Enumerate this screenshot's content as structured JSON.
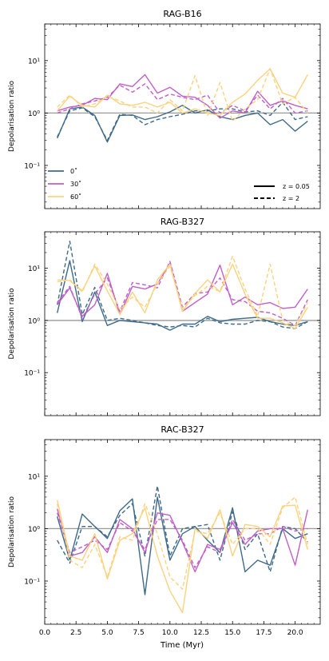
{
  "figure": {
    "xlabel": "Time (Myr)",
    "ylabel": "Depolarisation ratio",
    "x_ticks": [
      0.0,
      2.5,
      5.0,
      7.5,
      10.0,
      12.5,
      15.0,
      17.5,
      20.0
    ],
    "x_tick_labels": [
      "0.0",
      "2.5",
      "5.0",
      "7.5",
      "10.0",
      "12.5",
      "15.0",
      "17.5",
      "20.0"
    ],
    "xlim": [
      0,
      22
    ],
    "ylim": [
      0.015,
      50
    ],
    "y_scale": "log",
    "y_tick_labels": [
      "10⁻¹",
      "10⁰",
      "10¹"
    ],
    "reference_line": 1,
    "colors": {
      "0deg": "#3e6a89",
      "30deg": "#c05fc8",
      "60deg": "#fbd27e",
      "ref": "#999999"
    }
  },
  "legend_angles": [
    {
      "label": "0˚",
      "color": "#3e6a89"
    },
    {
      "label": "30˚",
      "color": "#c05fc8"
    },
    {
      "label": "60˚",
      "color": "#fbd27e"
    }
  ],
  "legend_z": [
    {
      "label": "z = 0.05",
      "style": "solid"
    },
    {
      "label": "z = 2",
      "style": "dashed"
    }
  ],
  "chart_data": [
    {
      "type": "line",
      "title": "RAG-B16",
      "x": [
        1,
        2,
        3,
        4,
        5,
        6,
        7,
        8,
        9,
        10,
        11,
        12,
        13,
        14,
        15,
        16,
        17,
        18,
        19,
        20,
        21
      ],
      "series": [
        {
          "name": "0˚, z = 0.05",
          "angle": "0deg",
          "style": "solid",
          "values": [
            0.33,
            1.2,
            1.3,
            0.9,
            0.28,
            0.9,
            0.92,
            0.75,
            0.85,
            1.05,
            1.4,
            1.0,
            1.15,
            0.85,
            0.75,
            0.9,
            1.0,
            0.6,
            0.75,
            0.45,
            0.7
          ]
        },
        {
          "name": "0˚, z = 2",
          "angle": "0deg",
          "style": "dashed",
          "values": [
            0.35,
            1.1,
            1.25,
            0.85,
            0.3,
            0.95,
            0.9,
            0.6,
            0.75,
            0.85,
            0.95,
            1.1,
            1.1,
            1.2,
            1.2,
            1.05,
            1.1,
            0.9,
            1.6,
            0.75,
            0.85
          ]
        },
        {
          "name": "30˚, z = 0.05",
          "angle": "30deg",
          "style": "solid",
          "values": [
            1.1,
            1.3,
            1.4,
            1.9,
            1.8,
            3.6,
            3.2,
            5.4,
            2.4,
            3.1,
            2.1,
            2.0,
            1.4,
            0.8,
            1.1,
            1.0,
            2.6,
            1.4,
            1.7,
            1.4,
            1.2
          ]
        },
        {
          "name": "30˚, z = 2",
          "angle": "30deg",
          "style": "dashed",
          "values": [
            1.0,
            1.2,
            1.5,
            1.7,
            2.0,
            3.4,
            2.5,
            3.6,
            1.8,
            2.3,
            2.0,
            1.8,
            2.2,
            1.0,
            1.4,
            1.1,
            2.2,
            1.2,
            1.9,
            1.0,
            1.1
          ]
        },
        {
          "name": "60˚, z = 0.05",
          "angle": "60deg",
          "style": "solid",
          "values": [
            1.1,
            2.1,
            1.4,
            1.3,
            2.2,
            1.5,
            1.4,
            1.6,
            1.3,
            1.6,
            1.0,
            1.2,
            1.0,
            0.9,
            1.6,
            2.3,
            4.2,
            7.0,
            2.4,
            2.0,
            5.4
          ]
        },
        {
          "name": "60˚, z = 2",
          "angle": "60deg",
          "style": "dashed",
          "values": [
            1.3,
            2.2,
            1.3,
            1.5,
            2.1,
            1.7,
            1.3,
            1.3,
            1.0,
            1.8,
            1.1,
            5.2,
            0.9,
            3.8,
            0.7,
            1.2,
            1.8,
            7.0,
            1.5,
            2.0,
            1.0
          ]
        }
      ]
    },
    {
      "type": "line",
      "title": "RAG-B327",
      "x": [
        1,
        2,
        3,
        4,
        5,
        6,
        7,
        8,
        9,
        10,
        11,
        12,
        13,
        14,
        15,
        16,
        17,
        18,
        19,
        20,
        21
      ],
      "series": [
        {
          "name": "0˚, z = 0.05",
          "angle": "0deg",
          "style": "solid",
          "values": [
            1.4,
            14.0,
            0.95,
            3.5,
            0.8,
            1.0,
            0.95,
            0.9,
            0.85,
            0.65,
            0.85,
            0.85,
            1.2,
            0.95,
            1.05,
            1.1,
            1.15,
            0.95,
            0.85,
            0.8,
            0.95
          ]
        },
        {
          "name": "0˚, z = 2",
          "angle": "0deg",
          "style": "dashed",
          "values": [
            2.0,
            33.0,
            1.3,
            4.3,
            1.0,
            1.1,
            1.0,
            0.9,
            0.8,
            0.75,
            0.8,
            0.75,
            1.1,
            0.9,
            0.85,
            0.85,
            1.0,
            0.95,
            0.75,
            0.7,
            0.95
          ]
        },
        {
          "name": "30˚, z = 0.05",
          "angle": "30deg",
          "style": "solid",
          "values": [
            2.0,
            4.2,
            1.2,
            2.0,
            8.0,
            1.3,
            4.5,
            4.0,
            5.0,
            12.5,
            1.5,
            2.2,
            3.2,
            11.5,
            2.0,
            2.8,
            2.0,
            2.2,
            1.7,
            1.8,
            4.0
          ]
        },
        {
          "name": "30˚, z = 2",
          "angle": "30deg",
          "style": "dashed",
          "values": [
            2.2,
            4.5,
            1.1,
            3.2,
            6.5,
            1.5,
            5.3,
            4.8,
            4.2,
            13.5,
            1.8,
            3.3,
            3.5,
            6.5,
            2.5,
            2.3,
            1.5,
            1.4,
            1.1,
            0.8,
            2.5
          ]
        },
        {
          "name": "60˚, z = 0.05",
          "angle": "60deg",
          "style": "solid",
          "values": [
            6.0,
            5.8,
            3.7,
            11.0,
            3.7,
            1.3,
            3.5,
            1.4,
            6.0,
            12.0,
            1.5,
            3.3,
            6.0,
            3.5,
            12.0,
            3.2,
            1.1,
            1.1,
            0.9,
            0.7,
            1.8
          ]
        },
        {
          "name": "60˚, z = 2",
          "angle": "60deg",
          "style": "dashed",
          "values": [
            5.5,
            6.0,
            3.5,
            12.0,
            5.0,
            1.6,
            2.8,
            1.8,
            5.0,
            11.0,
            1.7,
            3.0,
            4.5,
            3.6,
            17.0,
            4.0,
            1.2,
            12.0,
            1.0,
            0.8,
            2.2
          ]
        }
      ]
    },
    {
      "type": "line",
      "title": "RAC-B327",
      "x": [
        1,
        2,
        3,
        4,
        5,
        6,
        7,
        8,
        9,
        10,
        11,
        12,
        13,
        14,
        15,
        16,
        17,
        18,
        19,
        20,
        21
      ],
      "series": [
        {
          "name": "0˚, z = 0.05",
          "angle": "0deg",
          "style": "solid",
          "values": [
            1.7,
            0.25,
            1.9,
            1.1,
            0.65,
            2.2,
            3.7,
            0.055,
            4.0,
            0.25,
            0.8,
            1.1,
            0.6,
            0.35,
            2.5,
            0.15,
            0.25,
            0.2,
            1.0,
            0.65,
            0.8
          ]
        },
        {
          "name": "0˚, z = 2",
          "angle": "0deg",
          "style": "dashed",
          "values": [
            0.6,
            0.22,
            1.1,
            1.1,
            0.7,
            1.8,
            3.0,
            0.3,
            6.5,
            0.3,
            1.0,
            1.1,
            1.2,
            0.25,
            2.1,
            0.4,
            0.8,
            0.15,
            1.1,
            1.0,
            0.55
          ]
        },
        {
          "name": "30˚, z = 0.05",
          "angle": "30deg",
          "style": "solid",
          "values": [
            2.4,
            0.3,
            0.35,
            0.7,
            0.35,
            1.5,
            1.0,
            0.35,
            2.0,
            1.8,
            0.55,
            0.15,
            0.5,
            0.4,
            1.3,
            0.5,
            0.9,
            1.0,
            1.0,
            0.2,
            2.3
          ]
        },
        {
          "name": "30˚, z = 2",
          "angle": "30deg",
          "style": "dashed",
          "values": [
            2.0,
            0.35,
            0.45,
            0.6,
            0.4,
            1.3,
            0.9,
            0.4,
            1.5,
            1.5,
            0.6,
            0.18,
            0.45,
            0.35,
            1.5,
            0.6,
            0.8,
            0.8,
            1.1,
            0.9,
            1.0
          ]
        },
        {
          "name": "60˚, z = 0.05",
          "angle": "60deg",
          "style": "solid",
          "values": [
            3.5,
            0.3,
            0.25,
            0.8,
            0.11,
            0.6,
            0.8,
            2.5,
            0.3,
            0.065,
            0.025,
            1.0,
            0.65,
            2.3,
            0.3,
            1.2,
            1.1,
            0.7,
            2.7,
            2.8,
            0.4
          ]
        },
        {
          "name": "60˚, z = 2",
          "angle": "60deg",
          "style": "dashed",
          "values": [
            3.0,
            0.25,
            0.18,
            0.5,
            0.12,
            0.7,
            0.6,
            3.0,
            0.8,
            0.12,
            0.07,
            0.9,
            0.8,
            2.0,
            0.5,
            1.0,
            1.0,
            0.5,
            2.5,
            4.0,
            0.5
          ]
        }
      ]
    }
  ]
}
